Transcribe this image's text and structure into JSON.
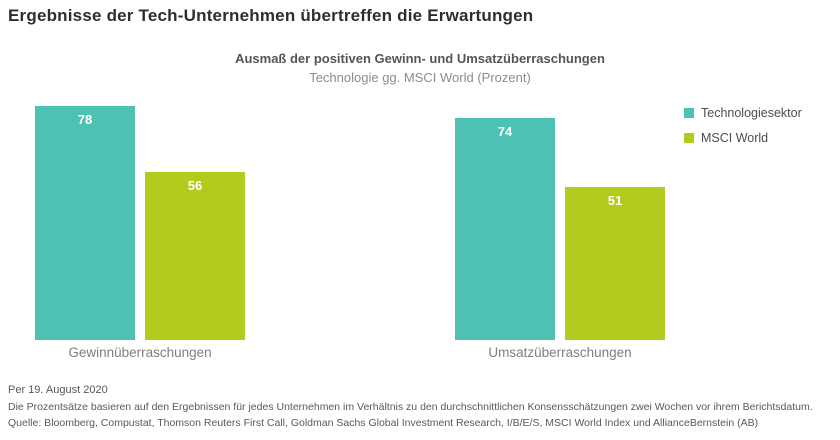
{
  "page": {
    "title": "Ergebnisse der Tech-Unternehmen übertreffen die Erwartungen"
  },
  "chart_data": {
    "type": "bar",
    "title": "Ausmaß der positiven Gewinn- und Umsatzüberraschungen",
    "subtitle": "Technologie gg. MSCI World (Prozent)",
    "categories": [
      "Gewinnüberraschungen",
      "Umsatzüberraschungen"
    ],
    "series": [
      {
        "name": "Technologiesektor",
        "color": "#4ec2b2",
        "values": [
          78,
          74
        ]
      },
      {
        "name": "MSCI World",
        "color": "#b2cb1d",
        "values": [
          56,
          51
        ]
      }
    ],
    "ylim": [
      0,
      80
    ],
    "grid": false,
    "legend_position": "right",
    "value_labels": "inside-top"
  },
  "footer": {
    "line1": "Per 19. August 2020",
    "line2": "Die Prozentsätze basieren auf den Ergebnissen für jedes Unternehmen im Verhältnis zu den durchschnittlichen Konsensschätzungen zwei Wochen vor ihrem Berichtsdatum.",
    "line3": "Quelle: Bloomberg, Compustat, Thomson Reuters First Call, Goldman Sachs Global Investment Research, I/B/E/S, MSCI World Index und AllianceBernstein (AB)"
  }
}
